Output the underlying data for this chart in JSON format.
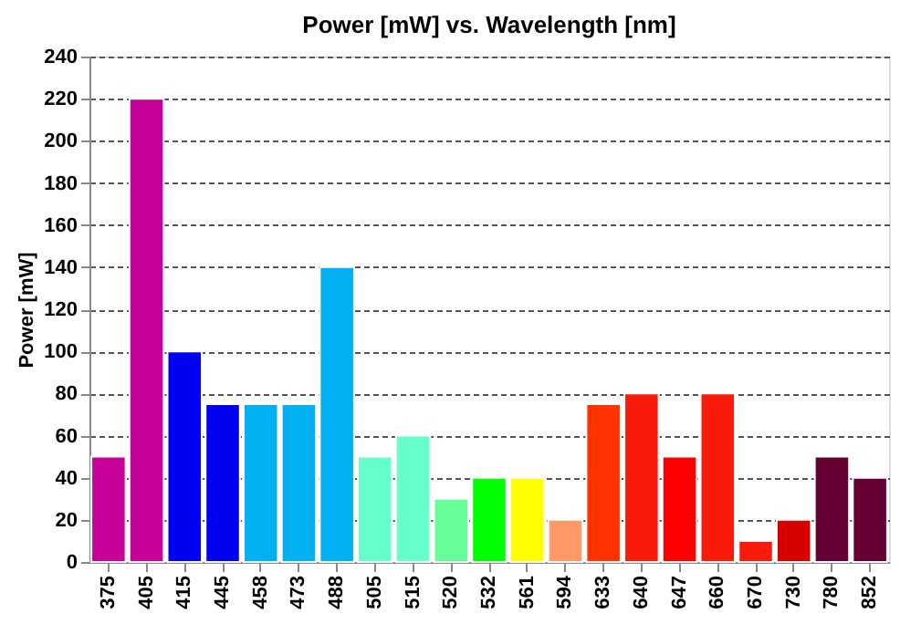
{
  "chart_data": {
    "type": "bar",
    "title": "Power [mW] vs. Wavelength [nm]",
    "ylabel": "Power [mW]",
    "categories": [
      "375",
      "405",
      "415",
      "445",
      "458",
      "473",
      "488",
      "505",
      "515",
      "520",
      "532",
      "561",
      "594",
      "633",
      "640",
      "647",
      "660",
      "670",
      "730",
      "780",
      "852"
    ],
    "values": [
      50,
      220,
      100,
      75,
      75,
      75,
      140,
      50,
      60,
      30,
      40,
      40,
      20,
      75,
      80,
      50,
      80,
      10,
      20,
      50,
      40
    ],
    "colors": [
      "#c8009a",
      "#c8009a",
      "#0000f0",
      "#0000f0",
      "#00b0f0",
      "#00b0f0",
      "#00b0f0",
      "#66ffcc",
      "#66ffcc",
      "#66ff99",
      "#00ff00",
      "#ffff00",
      "#ff9966",
      "#ff3300",
      "#f81a0a",
      "#ff0000",
      "#f81a0a",
      "#f81a0a",
      "#d60000",
      "#660033",
      "#660033"
    ],
    "ylim": [
      0,
      240
    ],
    "yticks": [
      0,
      20,
      40,
      60,
      80,
      100,
      120,
      140,
      160,
      180,
      200,
      220,
      240
    ],
    "grid": "y",
    "line_style": "dashed"
  }
}
